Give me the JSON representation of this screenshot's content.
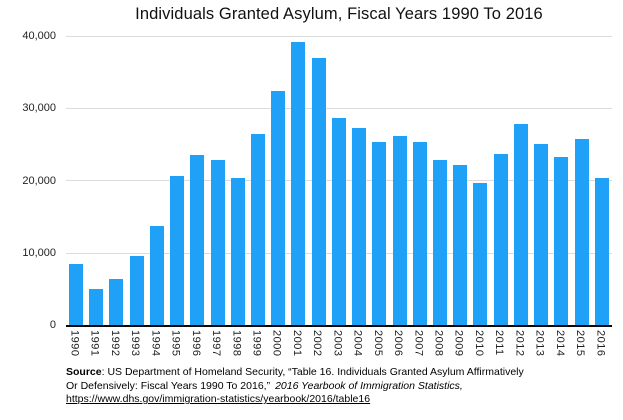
{
  "chart_data": {
    "type": "bar",
    "title": "Individuals Granted Asylum, Fiscal Years 1990 To 2016",
    "xlabel": "",
    "ylabel": "",
    "ylim": [
      0,
      40000
    ],
    "grid": true,
    "legend": "none",
    "bar_color": "#1ea1f7",
    "ytick_labels": [
      "40,000",
      "30,000",
      "20,000",
      "10,000",
      "0"
    ],
    "categories": [
      "1990",
      "1991",
      "1992",
      "1993",
      "1994",
      "1995",
      "1996",
      "1997",
      "1998",
      "1999",
      "2000",
      "2001",
      "2002",
      "2003",
      "2004",
      "2005",
      "2006",
      "2007",
      "2008",
      "2009",
      "2010",
      "2011",
      "2012",
      "2013",
      "2014",
      "2015",
      "2016"
    ],
    "values": [
      8500,
      5000,
      6300,
      9500,
      13700,
      20600,
      23500,
      22900,
      20400,
      26400,
      32400,
      39200,
      36900,
      28700,
      27300,
      25300,
      26100,
      25300,
      22900,
      22200,
      19700,
      23600,
      27800,
      25000,
      23300,
      25800,
      20400
    ]
  },
  "footnote": {
    "source_label": "Source",
    "line1_rest": ": US Department of Homeland Security, “Table 16. Individuals Granted Asylum Affirmatively",
    "line2_plain": "Or Defensively: Fiscal Years 1990 To 2016,”",
    "line2_italic": "2016 Yearbook of Immigration Statistics,",
    "link": "https://www.dhs.gov/immigration-statistics/yearbook/2016/table16"
  }
}
